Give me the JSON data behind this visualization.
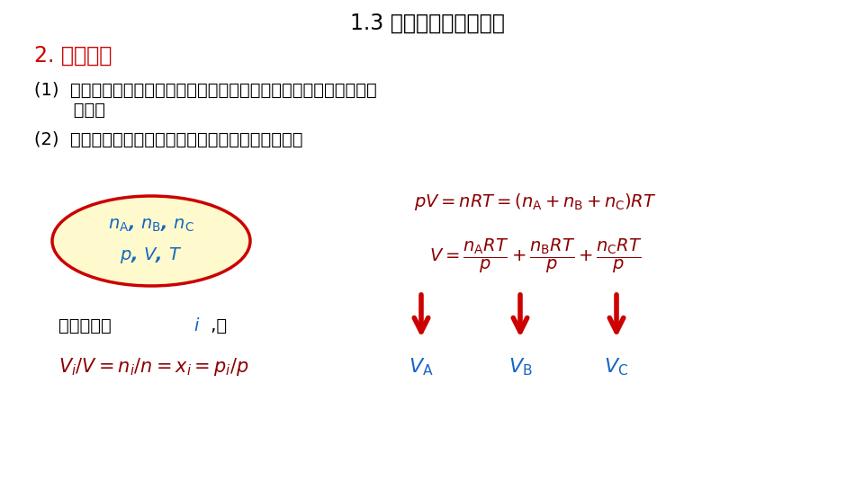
{
  "title": "1.3 分压定律和分容定律",
  "title_color": "#000000",
  "title_fontsize": 17,
  "bg_color": "#ffffff",
  "section_label_num": "2. ",
  "section_label_text": "分容定律",
  "section_color": "#cc0000",
  "section_fontsize": 17,
  "point1_text": "(1)  混合气体中各组分气体的分体积等于同温同压下该气体单独占有的",
  "point1b_text": "       体积。",
  "point2_text": "(2)  混合气体的总体积等于各组分气体的分体积之和。",
  "text_color": "#000000",
  "text_fontsize": 15,
  "dark_red": "#8b0000",
  "blue": "#1565C0",
  "red_arrow": "#cc0000",
  "dui_text": "对任一组分 ",
  "you_text": " ,有"
}
